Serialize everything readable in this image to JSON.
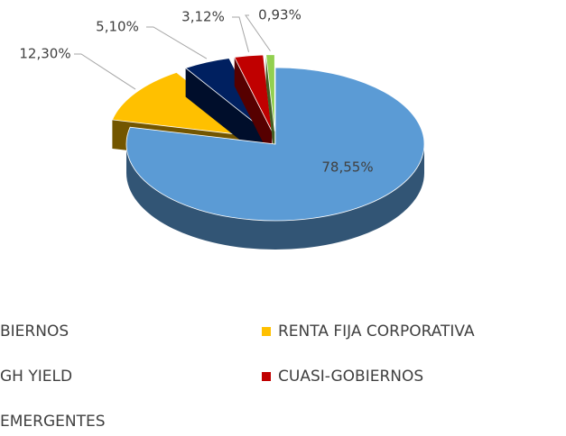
{
  "chart_data": {
    "type": "pie",
    "series": [
      {
        "name": "BIERNOS",
        "color": "#5b9bd5",
        "values": [
          78.55
        ],
        "value_labels": [
          "78,55%"
        ]
      },
      {
        "name": "RENTA FIJA CORPORATIVA",
        "color": "#ffc000",
        "values": [
          12.3
        ],
        "value_labels": [
          "12,30%"
        ]
      },
      {
        "name": "GH YIELD",
        "color": "#002060",
        "values": [
          5.1
        ],
        "value_labels": [
          "5,10%"
        ]
      },
      {
        "name": "CUASI-GOBIERNOS",
        "color": "#c00000",
        "values": [
          3.12
        ],
        "value_labels": [
          "3,12%"
        ]
      },
      {
        "name": "EMERGENTES",
        "color": "#92d050",
        "values": [
          0.93
        ],
        "value_labels": [
          "0,93%"
        ]
      }
    ]
  }
}
